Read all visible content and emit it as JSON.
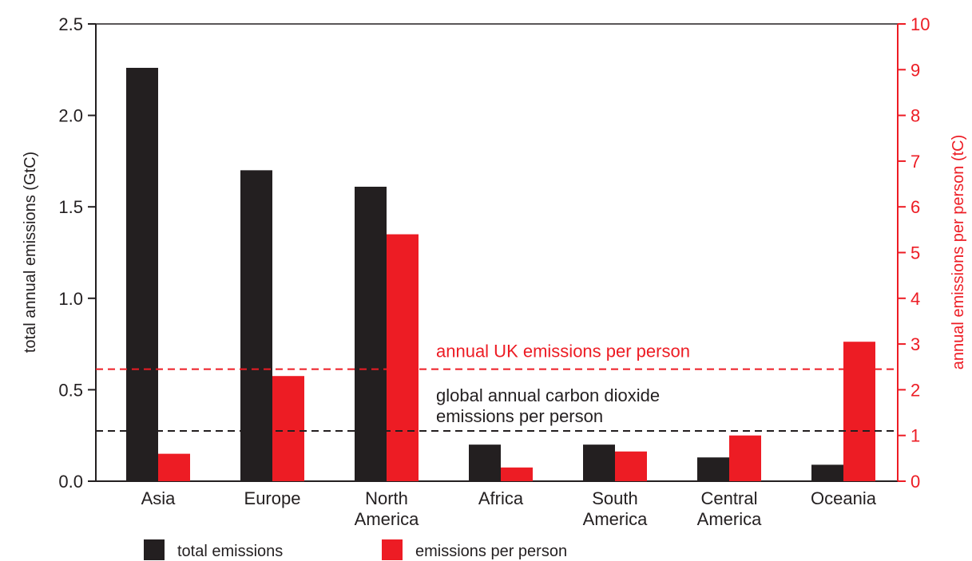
{
  "chart_data": {
    "type": "bar",
    "categories": [
      [
        "Asia"
      ],
      [
        "Europe"
      ],
      [
        "North",
        "America"
      ],
      [
        "Africa"
      ],
      [
        "South",
        "America"
      ],
      [
        "Central",
        "America"
      ],
      [
        "Oceania"
      ]
    ],
    "series": [
      {
        "name": "total emissions",
        "axis": "left",
        "color": "#231f20",
        "values": [
          2.26,
          1.7,
          1.61,
          0.2,
          0.2,
          0.13,
          0.09
        ]
      },
      {
        "name": "emissions per person",
        "axis": "right",
        "color": "#ed1c24",
        "values": [
          0.6,
          2.3,
          5.4,
          0.3,
          0.65,
          1.0,
          3.05
        ]
      }
    ],
    "ylabel_left": "total annual emissions (GtC)",
    "ylim_left": [
      0,
      2.5
    ],
    "yticks_left": [
      "0.0",
      "0.5",
      "1.0",
      "1.5",
      "2.0",
      "2.5"
    ],
    "ylabel_right": "annual emissions per person (tC)",
    "ylim_right": [
      0,
      10
    ],
    "yticks_right": [
      "0",
      "1",
      "2",
      "3",
      "4",
      "5",
      "6",
      "7",
      "8",
      "9",
      "10"
    ],
    "reference_lines": [
      {
        "label": [
          "annual UK emissions per person"
        ],
        "axis": "right",
        "value": 2.45,
        "color": "#ed1c24"
      },
      {
        "label": [
          "global annual carbon dioxide",
          "emissions per person"
        ],
        "axis": "right",
        "value": 1.1,
        "color": "#231f20"
      }
    ],
    "legend": {
      "placement": "bottom-left",
      "entries": [
        "total emissions",
        "emissions per person"
      ]
    },
    "grid": false
  }
}
